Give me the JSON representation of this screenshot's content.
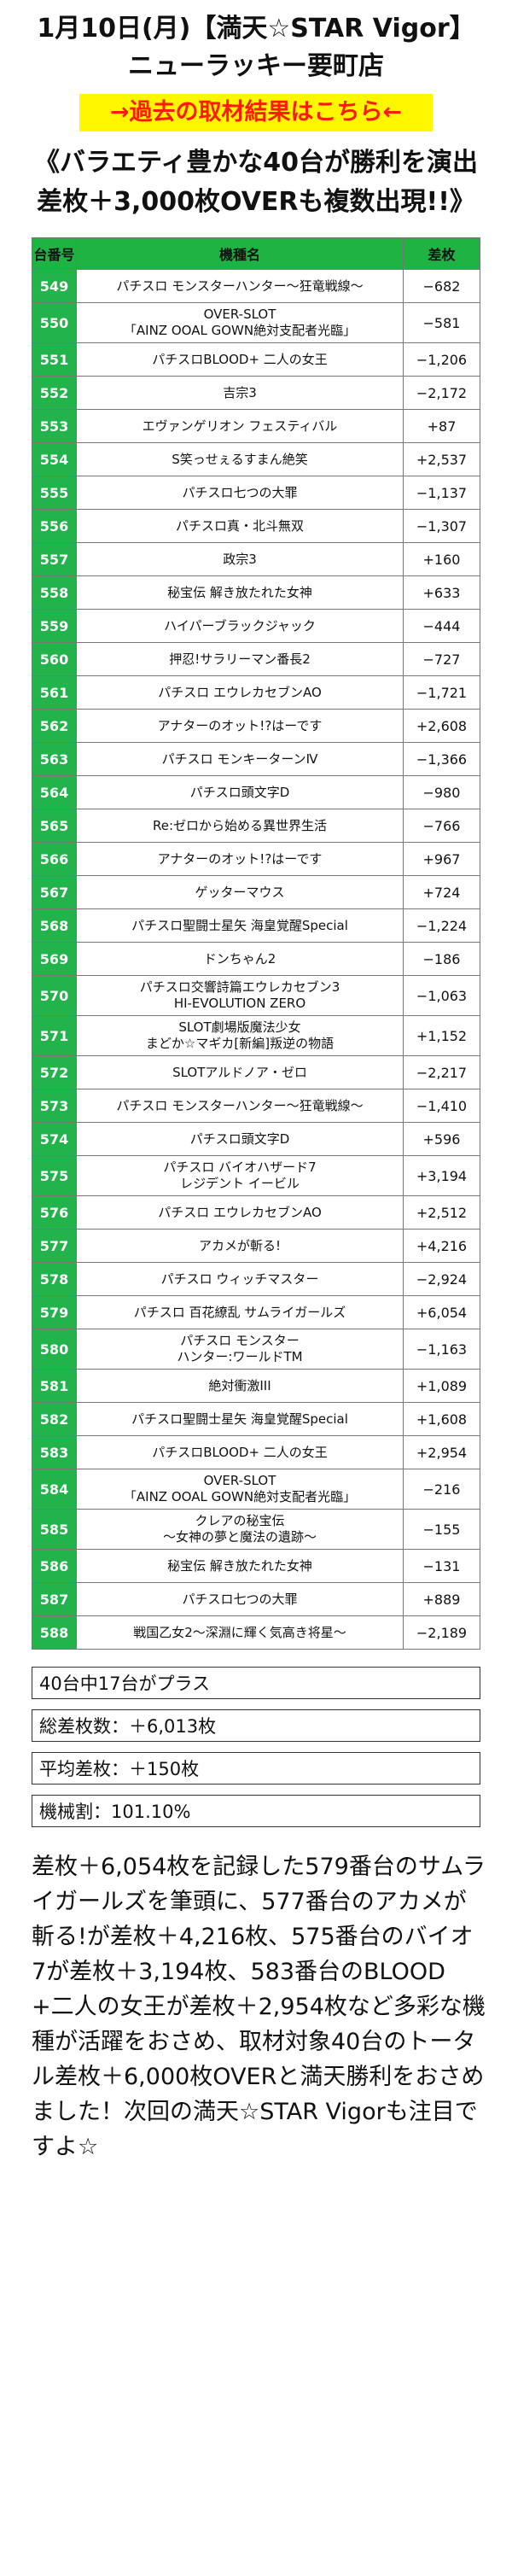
{
  "header": {
    "title_line1": "1月10日(月)【満天☆STAR Vigor】",
    "title_line2": "ニューラッキー要町店",
    "link_text": "→過去の取材結果はこちら←",
    "headline_line1": "《バラエティ豊かな40台が勝利を演出",
    "headline_line2": "差枚＋3,000枚OVERも複数出現!!》"
  },
  "table": {
    "headers": [
      "台番号",
      "機種名",
      "差枚"
    ],
    "rows": [
      {
        "no": "549",
        "name": "パチスロ モンスターハンター～狂竜戦線～",
        "diff": "−682"
      },
      {
        "no": "550",
        "name": "OVER-SLOT\n「AINZ OOAL GOWN絶対支配者光臨」",
        "diff": "−581"
      },
      {
        "no": "551",
        "name": "パチスロBLOOD+ 二人の女王",
        "diff": "−1,206"
      },
      {
        "no": "552",
        "name": "吉宗3",
        "diff": "−2,172"
      },
      {
        "no": "553",
        "name": "エヴァンゲリオン フェスティバル",
        "diff": "+87"
      },
      {
        "no": "554",
        "name": "S笑っせぇるすまん絶笑",
        "diff": "+2,537"
      },
      {
        "no": "555",
        "name": "パチスロ七つの大罪",
        "diff": "−1,137"
      },
      {
        "no": "556",
        "name": "パチスロ真・北斗無双",
        "diff": "−1,307"
      },
      {
        "no": "557",
        "name": "政宗3",
        "diff": "+160"
      },
      {
        "no": "558",
        "name": "秘宝伝 解き放たれた女神",
        "diff": "+633"
      },
      {
        "no": "559",
        "name": "ハイパーブラックジャック",
        "diff": "−444"
      },
      {
        "no": "560",
        "name": "押忍!サラリーマン番長2",
        "diff": "−727"
      },
      {
        "no": "561",
        "name": "パチスロ エウレカセブンAO",
        "diff": "−1,721"
      },
      {
        "no": "562",
        "name": "アナターのオット!?はーです",
        "diff": "+2,608"
      },
      {
        "no": "563",
        "name": "パチスロ モンキーターンⅣ",
        "diff": "−1,366"
      },
      {
        "no": "564",
        "name": "パチスロ頭文字D",
        "diff": "−980"
      },
      {
        "no": "565",
        "name": "Re:ゼロから始める異世界生活",
        "diff": "−766"
      },
      {
        "no": "566",
        "name": "アナターのオット!?はーです",
        "diff": "+967"
      },
      {
        "no": "567",
        "name": "ゲッターマウス",
        "diff": "+724"
      },
      {
        "no": "568",
        "name": "パチスロ聖闘士星矢 海皇覚醒Special",
        "diff": "−1,224"
      },
      {
        "no": "569",
        "name": "ドンちゃん2",
        "diff": "−186"
      },
      {
        "no": "570",
        "name": "パチスロ交響詩篇エウレカセブン3\nHI-EVOLUTION ZERO",
        "diff": "−1,063"
      },
      {
        "no": "571",
        "name": "SLOT劇場版魔法少女\nまどか☆マギカ[新編]叛逆の物語",
        "diff": "+1,152"
      },
      {
        "no": "572",
        "name": "SLOTアルドノア・ゼロ",
        "diff": "−2,217"
      },
      {
        "no": "573",
        "name": "パチスロ モンスターハンター～狂竜戦線～",
        "diff": "−1,410"
      },
      {
        "no": "574",
        "name": "パチスロ頭文字D",
        "diff": "+596"
      },
      {
        "no": "575",
        "name": "パチスロ バイオハザード7\nレジデント イービル",
        "diff": "+3,194"
      },
      {
        "no": "576",
        "name": "パチスロ エウレカセブンAO",
        "diff": "+2,512"
      },
      {
        "no": "577",
        "name": "アカメが斬る!",
        "diff": "+4,216"
      },
      {
        "no": "578",
        "name": "パチスロ ウィッチマスター",
        "diff": "−2,924"
      },
      {
        "no": "579",
        "name": "パチスロ 百花繚乱 サムライガールズ",
        "diff": "+6,054"
      },
      {
        "no": "580",
        "name": "パチスロ モンスター\nハンター:ワールドTM",
        "diff": "−1,163"
      },
      {
        "no": "581",
        "name": "絶対衝激III",
        "diff": "+1,089"
      },
      {
        "no": "582",
        "name": "パチスロ聖闘士星矢 海皇覚醒Special",
        "diff": "+1,608"
      },
      {
        "no": "583",
        "name": "パチスロBLOOD+ 二人の女王",
        "diff": "+2,954"
      },
      {
        "no": "584",
        "name": "OVER-SLOT\n「AINZ OOAL GOWN絶対支配者光臨」",
        "diff": "−216"
      },
      {
        "no": "585",
        "name": "クレアの秘宝伝\n～女神の夢と魔法の遺跡～",
        "diff": "−155"
      },
      {
        "no": "586",
        "name": "秘宝伝 解き放たれた女神",
        "diff": "−131"
      },
      {
        "no": "587",
        "name": "パチスロ七つの大罪",
        "diff": "+889"
      },
      {
        "no": "588",
        "name": "戦国乙女2～深淵に輝く気高き将星～",
        "diff": "−2,189"
      }
    ]
  },
  "summary": {
    "plus_count": "40台中17台がプラス",
    "total": "総差枚数：＋6,013枚",
    "average": "平均差枚：＋150枚",
    "payout": "機械割：101.10%"
  },
  "closing_text": "差枚＋6,054枚を記録した579番台のサムライガールズを筆頭に、577番台のアカメが斬る!が差枚＋4,216枚、575番台のバイオ7が差枚＋3,194枚、583番台のBLOOD+二人の女王が差枚＋2,954枚など多彩な機種が活躍をおさめ、取材対象40台のトータル差枚＋6,000枚OVERと満天勝利をおさめました！次回の満天☆STAR Vigorも注目ですよ☆",
  "colors": {
    "accent_green": "#22b34a",
    "banner_yellow": "#fff700",
    "banner_red": "#ff1a00"
  }
}
